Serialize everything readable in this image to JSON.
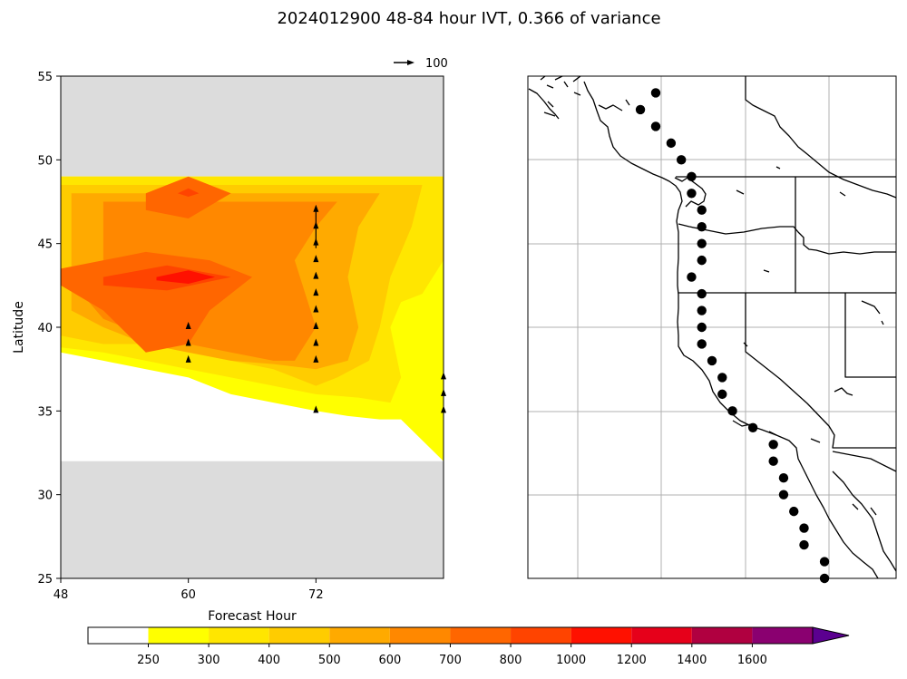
{
  "title": "2024012900 48-84 hour IVT, 0.366 of variance",
  "chart_data": [
    {
      "type": "heatmap",
      "subtype": "filled-contour-with-quiver",
      "xlabel": "Forecast Hour",
      "ylabel": "Latitude",
      "xlim": [
        48,
        84
      ],
      "ylim": [
        25,
        55
      ],
      "x_ticks": [
        "48",
        "60",
        "72"
      ],
      "y_ticks": [
        "25",
        "30",
        "35",
        "40",
        "45",
        "50",
        "55"
      ],
      "data_lat_range": [
        32,
        49
      ],
      "missing_color": "#dcdcdc",
      "quiver_key": {
        "value": 100,
        "label": "100"
      },
      "regions": [
        {
          "level": 250,
          "x": [
            48,
            84,
            84,
            80,
            78,
            75,
            72,
            68,
            64,
            60,
            56,
            52,
            48
          ],
          "y": [
            49,
            49,
            32,
            34.5,
            34.5,
            34.7,
            35,
            35.5,
            36,
            37,
            37.5,
            38,
            38.5
          ]
        },
        {
          "level": 300,
          "x": [
            48,
            84,
            84,
            82,
            80,
            79,
            80,
            79,
            76,
            72,
            68,
            64,
            60,
            56,
            52,
            48
          ],
          "y": [
            49,
            49,
            44,
            42,
            41.5,
            40,
            37,
            35.5,
            35.8,
            36,
            36.5,
            37,
            37.5,
            38,
            38.5,
            38.8
          ]
        },
        {
          "level": 400,
          "x": [
            48,
            82,
            81,
            79,
            78,
            77,
            74,
            72,
            70,
            68,
            64,
            60,
            56,
            52,
            48
          ],
          "y": [
            48.5,
            48.5,
            46,
            43,
            40,
            38,
            37,
            36.5,
            37,
            37.5,
            38,
            38.5,
            39,
            39,
            39.5
          ]
        },
        {
          "level": 500,
          "x": [
            49,
            78,
            76,
            75,
            76,
            75,
            72,
            68,
            64,
            60,
            56,
            52,
            49
          ],
          "y": [
            48,
            48,
            46,
            43,
            40,
            38,
            37.5,
            37.8,
            38,
            38.5,
            39,
            40,
            41
          ]
        },
        {
          "level": 600,
          "x": [
            52,
            74,
            72,
            70,
            72,
            70,
            68,
            64,
            60,
            56,
            52,
            50,
            52
          ],
          "y": [
            47.5,
            47.5,
            46,
            44,
            40,
            38,
            38,
            38.5,
            39,
            39.5,
            40.5,
            42,
            44
          ]
        },
        {
          "level": 700,
          "x": [
            48,
            56,
            62,
            66,
            62,
            60,
            56,
            52,
            48
          ],
          "y": [
            43.5,
            44.5,
            44,
            43,
            41,
            39,
            38.5,
            41,
            42.5
          ]
        },
        {
          "level": 700,
          "x": [
            56,
            60,
            64,
            60,
            56
          ],
          "y": [
            48,
            49,
            48,
            46.5,
            47
          ]
        },
        {
          "level": 800,
          "x": [
            52,
            58,
            64,
            58,
            52
          ],
          "y": [
            43,
            43.7,
            43,
            42.2,
            42.5
          ]
        },
        {
          "level": 800,
          "x": [
            59,
            60,
            61,
            60
          ],
          "y": [
            48,
            48.3,
            48,
            47.8
          ]
        },
        {
          "level": 1000,
          "x": [
            57,
            60,
            62.5,
            60,
            57
          ],
          "y": [
            43,
            43.4,
            43,
            42.6,
            42.8
          ]
        }
      ],
      "vectors": [
        {
          "x": 60,
          "lat": 40
        },
        {
          "x": 60,
          "lat": 39
        },
        {
          "x": 60,
          "lat": 38
        },
        {
          "x": 72,
          "lat": 47,
          "long": true
        },
        {
          "x": 72,
          "lat": 46
        },
        {
          "x": 72,
          "lat": 45
        },
        {
          "x": 72,
          "lat": 44
        },
        {
          "x": 72,
          "lat": 43
        },
        {
          "x": 72,
          "lat": 42
        },
        {
          "x": 72,
          "lat": 41
        },
        {
          "x": 72,
          "lat": 40
        },
        {
          "x": 72,
          "lat": 39
        },
        {
          "x": 72,
          "lat": 38
        },
        {
          "x": 72,
          "lat": 35
        },
        {
          "x": 84,
          "lat": 37
        },
        {
          "x": 84,
          "lat": 36
        },
        {
          "x": 84,
          "lat": 35
        }
      ]
    },
    {
      "type": "scatter",
      "subtype": "map",
      "lon_range": [
        -141,
        -105
      ],
      "lat_range": [
        25,
        55
      ],
      "grid": true,
      "points": [
        {
          "lon": -128.5,
          "lat": 54
        },
        {
          "lon": -130,
          "lat": 53
        },
        {
          "lon": -128.5,
          "lat": 52
        },
        {
          "lon": -127,
          "lat": 51
        },
        {
          "lon": -126,
          "lat": 50
        },
        {
          "lon": -125,
          "lat": 49
        },
        {
          "lon": -125,
          "lat": 48
        },
        {
          "lon": -124,
          "lat": 47
        },
        {
          "lon": -124,
          "lat": 46
        },
        {
          "lon": -124,
          "lat": 45
        },
        {
          "lon": -124,
          "lat": 44
        },
        {
          "lon": -125,
          "lat": 43
        },
        {
          "lon": -124,
          "lat": 42
        },
        {
          "lon": -124,
          "lat": 41
        },
        {
          "lon": -124,
          "lat": 40
        },
        {
          "lon": -124,
          "lat": 39
        },
        {
          "lon": -123,
          "lat": 38
        },
        {
          "lon": -122,
          "lat": 37
        },
        {
          "lon": -122,
          "lat": 36
        },
        {
          "lon": -121,
          "lat": 35
        },
        {
          "lon": -119,
          "lat": 34
        },
        {
          "lon": -117,
          "lat": 33
        },
        {
          "lon": -117,
          "lat": 32
        },
        {
          "lon": -116,
          "lat": 31
        },
        {
          "lon": -116,
          "lat": 30
        },
        {
          "lon": -115,
          "lat": 29
        },
        {
          "lon": -114,
          "lat": 28
        },
        {
          "lon": -114,
          "lat": 27
        },
        {
          "lon": -112,
          "lat": 26
        },
        {
          "lon": -112,
          "lat": 25
        }
      ]
    }
  ],
  "colorbar": {
    "levels": [
      "250",
      "300",
      "400",
      "500",
      "600",
      "700",
      "800",
      "1000",
      "1200",
      "1400",
      "1600"
    ],
    "colors": [
      "#ffffff",
      "#ffff00",
      "#ffe600",
      "#ffcc00",
      "#ffaa00",
      "#ff8800",
      "#ff6600",
      "#ff4400",
      "#ff1100",
      "#e6001a",
      "#b00040",
      "#8a0070",
      "#5b0090"
    ],
    "extend": "max"
  }
}
